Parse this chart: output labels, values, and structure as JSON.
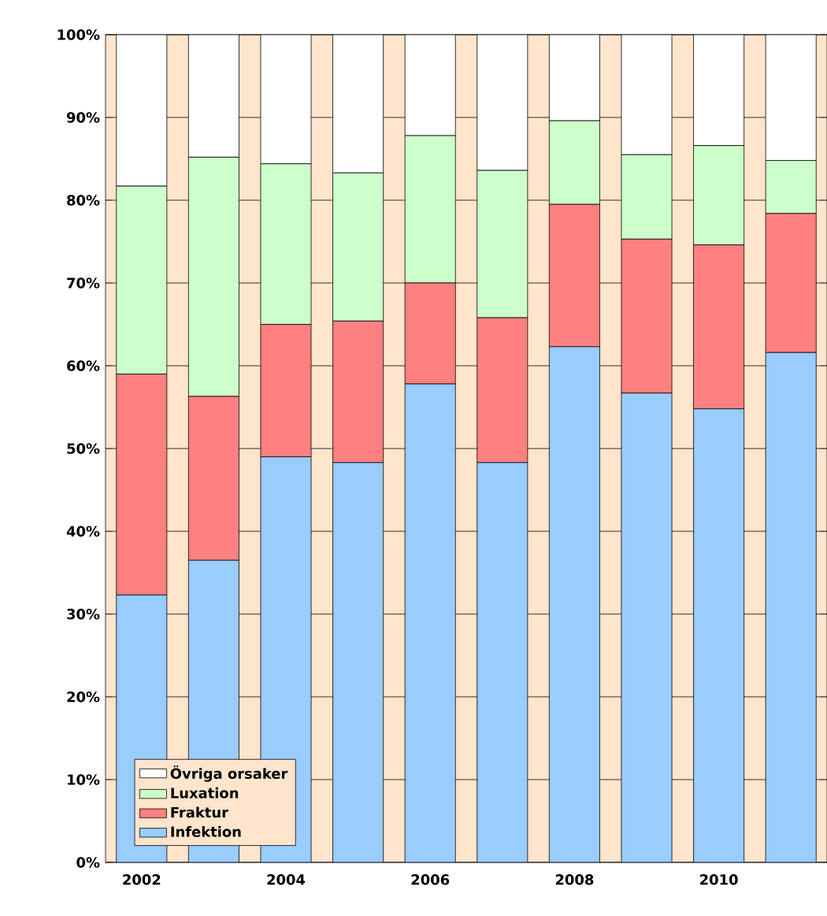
{
  "chart_data": {
    "type": "bar",
    "stacked": true,
    "categories": [
      "2002",
      null,
      "2004",
      null,
      "2006",
      null,
      "2008",
      null,
      "2010",
      null
    ],
    "series": [
      {
        "name": "Infektion",
        "color": "#99ccff",
        "values": [
          32.3,
          36.5,
          49,
          48.3,
          57.8,
          48.3,
          62.3,
          56.7,
          54.8,
          61.6
        ]
      },
      {
        "name": "Fraktur",
        "color": "#ff8080",
        "values": [
          26.7,
          19.8,
          16,
          17.1,
          12.2,
          17.5,
          17.2,
          18.6,
          19.8,
          16.8
        ]
      },
      {
        "name": "Luxation",
        "color": "#ccffcc",
        "values": [
          22.7,
          28.9,
          19.4,
          17.9,
          17.8,
          17.8,
          10.1,
          10.2,
          12,
          6.4
        ]
      },
      {
        "name": "Övriga orsaker",
        "color": "#ffffff",
        "values": [
          18.3,
          14.8,
          15.6,
          16.7,
          12.2,
          16.4,
          10.4,
          14.5,
          13.4,
          15.2
        ]
      }
    ],
    "ylim": [
      0,
      100
    ],
    "yticks": [
      {
        "value": 0,
        "label": "0%"
      },
      {
        "value": 10,
        "label": "10%"
      },
      {
        "value": 20,
        "label": "20%"
      },
      {
        "value": 30,
        "label": "30%"
      },
      {
        "value": 40,
        "label": "40%"
      },
      {
        "value": 50,
        "label": "50%"
      },
      {
        "value": 60,
        "label": "60%"
      },
      {
        "value": 70,
        "label": "70%"
      },
      {
        "value": 80,
        "label": "80%"
      },
      {
        "value": 90,
        "label": "90%"
      },
      {
        "value": 100,
        "label": "100%"
      }
    ],
    "grid": "y",
    "legend": "bottom left"
  }
}
